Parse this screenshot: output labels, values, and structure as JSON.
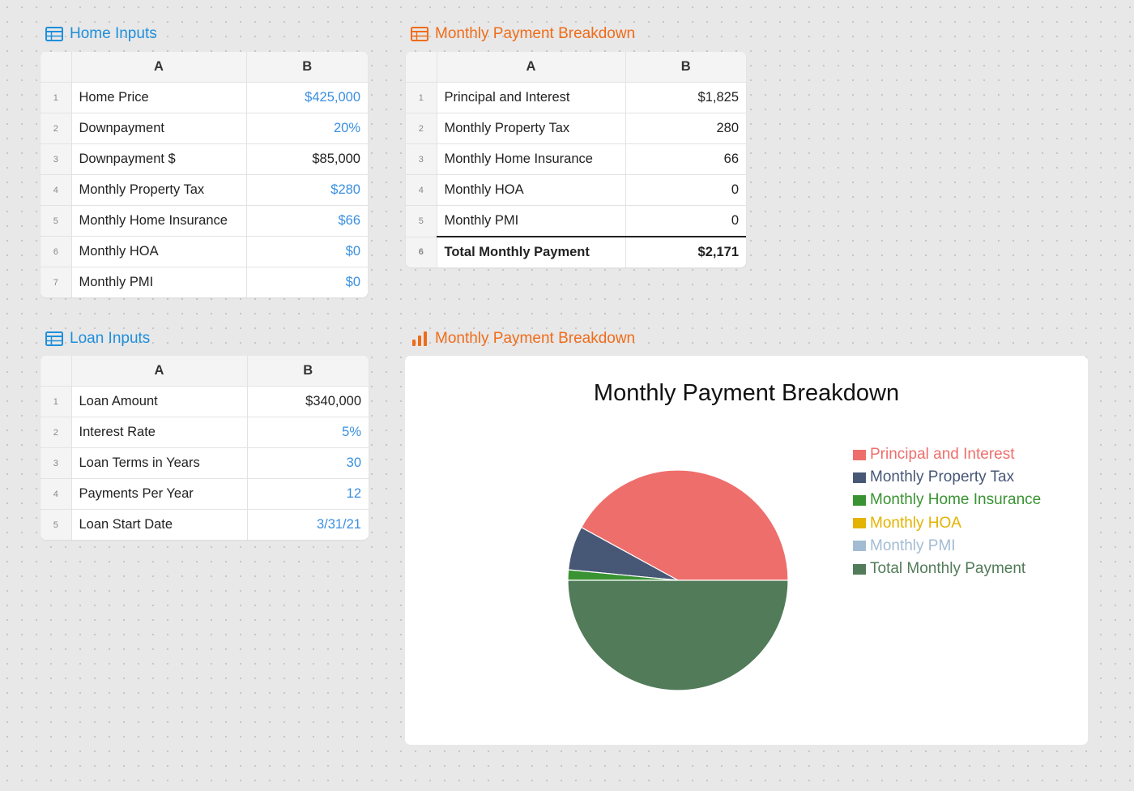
{
  "home_inputs": {
    "title": "Home Inputs",
    "columns": [
      "A",
      "B"
    ],
    "rows": [
      {
        "n": "1",
        "label": "Home Price",
        "value": "$425,000",
        "input": true
      },
      {
        "n": "2",
        "label": "Downpayment",
        "value": "20%",
        "input": true
      },
      {
        "n": "3",
        "label": "Downpayment $",
        "value": "$85,000",
        "input": false
      },
      {
        "n": "4",
        "label": "Monthly Property Tax",
        "value": "$280",
        "input": true
      },
      {
        "n": "5",
        "label": "Monthly Home Insurance",
        "value": "$66",
        "input": true
      },
      {
        "n": "6",
        "label": "Monthly HOA",
        "value": "$0",
        "input": true
      },
      {
        "n": "7",
        "label": "Monthly PMI",
        "value": "$0",
        "input": true
      }
    ]
  },
  "breakdown_table": {
    "title": "Monthly Payment Breakdown",
    "columns": [
      "A",
      "B"
    ],
    "rows": [
      {
        "n": "1",
        "label": "Principal and Interest",
        "value": "$1,825"
      },
      {
        "n": "2",
        "label": "Monthly Property Tax",
        "value": "280"
      },
      {
        "n": "3",
        "label": "Monthly Home Insurance",
        "value": "66"
      },
      {
        "n": "4",
        "label": "Monthly HOA",
        "value": "0"
      },
      {
        "n": "5",
        "label": "Monthly PMI",
        "value": "0"
      },
      {
        "n": "6",
        "label": "Total Monthly Payment",
        "value": "$2,171",
        "total": true
      }
    ]
  },
  "loan_inputs": {
    "title": "Loan Inputs",
    "columns": [
      "A",
      "B"
    ],
    "rows": [
      {
        "n": "1",
        "label": "Loan Amount",
        "value": "$340,000",
        "input": false
      },
      {
        "n": "2",
        "label": "Interest Rate",
        "value": "5%",
        "input": true
      },
      {
        "n": "3",
        "label": "Loan Terms in Years",
        "value": "30",
        "input": true
      },
      {
        "n": "4",
        "label": "Payments Per Year",
        "value": "12",
        "input": true
      },
      {
        "n": "5",
        "label": "Loan Start Date",
        "value": "3/31/21",
        "input": true
      }
    ]
  },
  "chart_panel": {
    "title": "Monthly Payment Breakdown"
  },
  "chart_data": {
    "type": "pie",
    "title": "Monthly Payment Breakdown",
    "legend_position": "right",
    "slices": [
      {
        "label": "Principal and Interest",
        "value": 1825,
        "color": "#ee6e6c"
      },
      {
        "label": "Monthly Property Tax",
        "value": 280,
        "color": "#475776"
      },
      {
        "label": "Monthly Home Insurance",
        "value": 66,
        "color": "#3a9333"
      },
      {
        "label": "Monthly HOA",
        "value": 0,
        "color": "#e3b300"
      },
      {
        "label": "Monthly PMI",
        "value": 0,
        "color": "#a3bcd3"
      },
      {
        "label": "Total Monthly Payment",
        "value": 2171,
        "color": "#527b59"
      }
    ]
  },
  "colors": {
    "title_blue": "#1f8fdc",
    "title_orange": "#ef6c1a",
    "input_blue": "#3a8fe0"
  }
}
